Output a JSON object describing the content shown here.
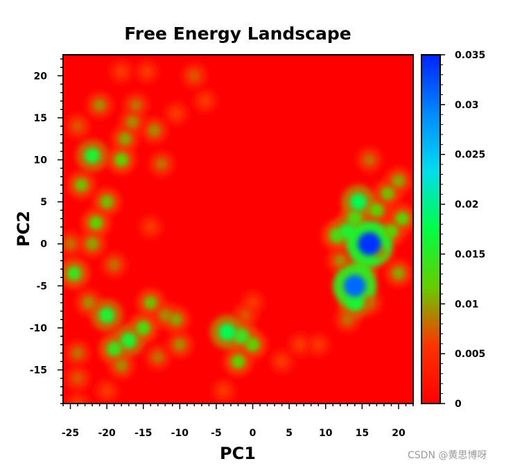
{
  "chart_data": {
    "type": "heatmap",
    "title": "Free Energy Landscape",
    "xlabel": "PC1",
    "ylabel": "PC2",
    "xlim": [
      -26,
      22
    ],
    "ylim": [
      -19,
      22.5
    ],
    "x_ticks": [
      -25,
      -20,
      -15,
      -10,
      -5,
      0,
      5,
      10,
      15,
      20
    ],
    "x_tick_labels": [
      "-25",
      "-20",
      "-15",
      "-10",
      "-5",
      "0",
      "5",
      "10",
      "15",
      "20"
    ],
    "y_ticks": [
      -15,
      -10,
      -5,
      0,
      5,
      10,
      15,
      20
    ],
    "y_tick_labels": [
      "-15",
      "-10",
      "-5",
      "0",
      "5",
      "10",
      "15",
      "20"
    ],
    "colorbar": {
      "min": 0,
      "max": 0.035,
      "ticks": [
        0,
        0.005,
        0.01,
        0.015,
        0.02,
        0.025,
        0.03,
        0.035
      ],
      "tick_labels": [
        "0",
        "0.005",
        "0.01",
        "0.015",
        "0.02",
        "0.025",
        "0.03",
        "0.035"
      ],
      "colors": [
        "#ff0000",
        "#ff3300",
        "#66cc00",
        "#00ff44",
        "#00ddee",
        "#0088ff",
        "#0022ff"
      ]
    },
    "background_value": 0,
    "grid": false,
    "density_points": [
      {
        "x": 16,
        "y": 0,
        "value": 0.034
      },
      {
        "x": 14,
        "y": -5,
        "value": 0.031
      },
      {
        "x": 14,
        "y": -7,
        "value": 0.016
      },
      {
        "x": 15,
        "y": -3,
        "value": 0.014
      },
      {
        "x": 13,
        "y": 1.5,
        "value": 0.016
      },
      {
        "x": 11.5,
        "y": 1,
        "value": 0.013
      },
      {
        "x": 14.5,
        "y": 5,
        "value": 0.018
      },
      {
        "x": 14,
        "y": 3,
        "value": 0.013
      },
      {
        "x": 17,
        "y": 4,
        "value": 0.012
      },
      {
        "x": 18.5,
        "y": 6,
        "value": 0.011
      },
      {
        "x": 19,
        "y": 1.5,
        "value": 0.012
      },
      {
        "x": 20.5,
        "y": 3,
        "value": 0.012
      },
      {
        "x": 20,
        "y": 7.5,
        "value": 0.01
      },
      {
        "x": 20,
        "y": -3.5,
        "value": 0.01
      },
      {
        "x": 16,
        "y": 10,
        "value": 0.008
      },
      {
        "x": 12,
        "y": -2,
        "value": 0.009
      },
      {
        "x": 16,
        "y": -7,
        "value": 0.008
      },
      {
        "x": 13,
        "y": -9,
        "value": 0.008
      },
      {
        "x": 17.5,
        "y": -1,
        "value": 0.01
      },
      {
        "x": -22,
        "y": 10.5,
        "value": 0.016
      },
      {
        "x": -21,
        "y": 16.5,
        "value": 0.009
      },
      {
        "x": -18,
        "y": 10,
        "value": 0.012
      },
      {
        "x": -17.5,
        "y": 12.5,
        "value": 0.01
      },
      {
        "x": -16.5,
        "y": 14.5,
        "value": 0.009
      },
      {
        "x": -16,
        "y": 16.5,
        "value": 0.008
      },
      {
        "x": -13.5,
        "y": 13.5,
        "value": 0.009
      },
      {
        "x": -12.5,
        "y": 9.5,
        "value": 0.008
      },
      {
        "x": -10.5,
        "y": 15.5,
        "value": 0.006
      },
      {
        "x": -18,
        "y": 20.5,
        "value": 0.006
      },
      {
        "x": -14.5,
        "y": 20.5,
        "value": 0.006
      },
      {
        "x": -8,
        "y": 20,
        "value": 0.007
      },
      {
        "x": -6.5,
        "y": 17,
        "value": 0.006
      },
      {
        "x": -24,
        "y": 14,
        "value": 0.007
      },
      {
        "x": -23.5,
        "y": 7,
        "value": 0.011
      },
      {
        "x": -20,
        "y": 5,
        "value": 0.011
      },
      {
        "x": -21.5,
        "y": 2.5,
        "value": 0.012
      },
      {
        "x": -22,
        "y": 0,
        "value": 0.01
      },
      {
        "x": -19,
        "y": -2.5,
        "value": 0.008
      },
      {
        "x": -14,
        "y": 2,
        "value": 0.006
      },
      {
        "x": -24.5,
        "y": -3.5,
        "value": 0.014
      },
      {
        "x": -25,
        "y": 0,
        "value": 0.008
      },
      {
        "x": -20,
        "y": -8.5,
        "value": 0.016
      },
      {
        "x": -22.5,
        "y": -7,
        "value": 0.009
      },
      {
        "x": -19,
        "y": -12.5,
        "value": 0.014
      },
      {
        "x": -17,
        "y": -11.5,
        "value": 0.016
      },
      {
        "x": -15,
        "y": -10,
        "value": 0.013
      },
      {
        "x": -14,
        "y": -7,
        "value": 0.011
      },
      {
        "x": -12,
        "y": -8.5,
        "value": 0.009
      },
      {
        "x": -10.5,
        "y": -9,
        "value": 0.01
      },
      {
        "x": -10,
        "y": -12,
        "value": 0.009
      },
      {
        "x": -13,
        "y": -13.5,
        "value": 0.008
      },
      {
        "x": -18,
        "y": -14.5,
        "value": 0.009
      },
      {
        "x": -24,
        "y": -13,
        "value": 0.008
      },
      {
        "x": -24,
        "y": -16,
        "value": 0.007
      },
      {
        "x": -20,
        "y": -17.5,
        "value": 0.006
      },
      {
        "x": -24,
        "y": -19,
        "value": 0.006
      },
      {
        "x": -3.5,
        "y": -10.5,
        "value": 0.018
      },
      {
        "x": -1.5,
        "y": -11,
        "value": 0.014
      },
      {
        "x": 0,
        "y": -12,
        "value": 0.012
      },
      {
        "x": -2,
        "y": -14,
        "value": 0.012
      },
      {
        "x": -1,
        "y": -8.5,
        "value": 0.007
      },
      {
        "x": 0,
        "y": -7,
        "value": 0.006
      },
      {
        "x": 4,
        "y": -14,
        "value": 0.006
      },
      {
        "x": 6.5,
        "y": -12,
        "value": 0.006
      },
      {
        "x": 9,
        "y": -12,
        "value": 0.006
      },
      {
        "x": -4,
        "y": -17.5,
        "value": 0.006
      }
    ]
  },
  "watermark": "CSDN @黄思博呀"
}
